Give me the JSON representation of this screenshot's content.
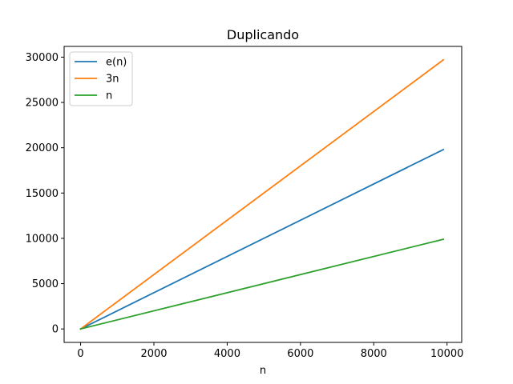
{
  "chart_data": {
    "type": "line",
    "title": "Duplicando",
    "xlabel": "n",
    "ylabel": "",
    "xlim": [
      -450,
      10400
    ],
    "ylim": [
      -1485,
      31185
    ],
    "xticks": [
      0,
      2000,
      4000,
      6000,
      8000,
      10000
    ],
    "xtick_labels": [
      "0",
      "2000",
      "4000",
      "6000",
      "8000",
      "10000"
    ],
    "yticks": [
      0,
      5000,
      10000,
      15000,
      20000,
      25000,
      30000
    ],
    "ytick_labels": [
      "0",
      "5000",
      "10000",
      "15000",
      "20000",
      "25000",
      "30000"
    ],
    "grid": false,
    "legend_position": "top-left",
    "x": [
      0,
      9900
    ],
    "series": [
      {
        "name": "e(n)",
        "color": "#1f77b4",
        "values": [
          0,
          19800
        ]
      },
      {
        "name": "3n",
        "color": "#ff7f0e",
        "values": [
          0,
          29700
        ]
      },
      {
        "name": "n",
        "color": "#2ca02c",
        "values": [
          0,
          9900
        ]
      }
    ]
  }
}
